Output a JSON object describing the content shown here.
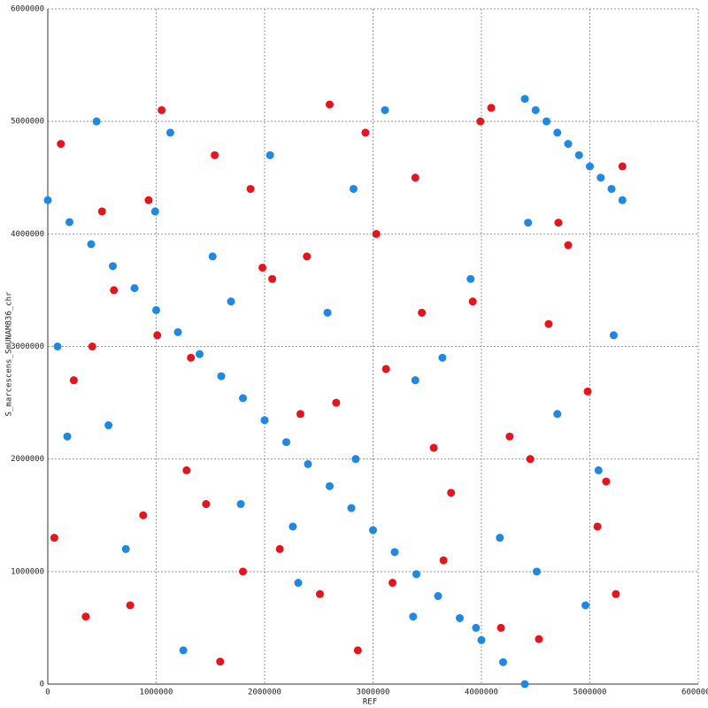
{
  "chart_data": {
    "type": "scatter",
    "xlabel": "REF",
    "ylabel": "S_marcescens_SmUNAM836_chr",
    "xlim": [
      0,
      6000000
    ],
    "ylim": [
      0,
      6000000
    ],
    "xticks": [
      0,
      1000000,
      2000000,
      3000000,
      4000000,
      5000000,
      6000000
    ],
    "yticks": [
      0,
      1000000,
      2000000,
      3000000,
      4000000,
      5000000,
      6000000
    ],
    "grid": true,
    "series": [
      {
        "color": "#e8141c",
        "x": [
          120000,
          350000,
          610000,
          880000,
          1050000,
          1320000,
          1590000,
          1870000,
          2140000,
          2390000,
          2660000,
          2930000,
          3180000,
          3450000,
          3720000,
          3990000,
          4260000,
          4530000,
          4800000,
          5070000,
          5300000,
          240000,
          500000,
          760000,
          1010000,
          1280000,
          1540000,
          1800000,
          2070000,
          2330000,
          2600000,
          2860000,
          3120000,
          3390000,
          3650000,
          3920000,
          4180000,
          4450000,
          4710000,
          4980000,
          5240000,
          60000,
          410000,
          930000,
          1460000,
          1980000,
          2510000,
          3030000,
          3560000,
          4090000,
          4620000,
          5150000
        ],
        "values": [
          4800000,
          600000,
          3500000,
          1500000,
          5100000,
          2900000,
          200000,
          4400000,
          1200000,
          3800000,
          2500000,
          4900000,
          900000,
          3300000,
          1700000,
          5000000,
          2200000,
          400000,
          3900000,
          1400000,
          4600000,
          2700000,
          4200000,
          700000,
          3100000,
          1900000,
          4700000,
          1000000,
          3600000,
          2400000,
          5150000,
          300000,
          2800000,
          4500000,
          1100000,
          3400000,
          500000,
          2000000,
          4100000,
          2600000,
          800000,
          1300000,
          3000000,
          4300000,
          1600000,
          3700000,
          800000,
          4000000,
          2100000,
          5120000,
          3200000,
          1800000
        ]
      },
      {
        "color": "#1e88e5",
        "x": [
          0,
          200000,
          400000,
          600000,
          800000,
          1000000,
          1200000,
          1400000,
          1600000,
          1800000,
          2000000,
          2200000,
          2400000,
          2600000,
          2800000,
          3000000,
          3200000,
          3400000,
          3600000,
          3800000,
          4000000,
          4200000,
          4400000,
          4400000,
          4500000,
          4600000,
          4700000,
          4800000,
          4900000,
          5000000,
          5100000,
          5200000,
          5300000,
          180000,
          450000,
          720000,
          990000,
          1250000,
          1520000,
          1780000,
          2050000,
          2310000,
          2580000,
          2840000,
          3110000,
          3370000,
          3640000,
          3900000,
          4170000,
          4430000,
          4700000,
          4960000,
          5220000,
          90000,
          560000,
          1130000,
          1690000,
          2260000,
          2820000,
          3390000,
          3950000,
          4510000,
          5080000
        ],
        "values": [
          4300000,
          4105000,
          3909000,
          3714000,
          3518000,
          3323000,
          3127000,
          2932000,
          2736000,
          2541000,
          2345000,
          2150000,
          1955000,
          1759000,
          1564000,
          1368000,
          1173000,
          977000,
          782000,
          586000,
          391000,
          195000,
          0,
          5200000,
          5100000,
          5000000,
          4900000,
          4800000,
          4700000,
          4600000,
          4500000,
          4400000,
          4300000,
          2200000,
          5000000,
          1200000,
          4200000,
          300000,
          3800000,
          1600000,
          4700000,
          900000,
          3300000,
          2000000,
          5100000,
          600000,
          2900000,
          3600000,
          1300000,
          4100000,
          2400000,
          700000,
          3100000,
          3000000,
          2300000,
          4900000,
          3400000,
          1400000,
          4400000,
          2700000,
          500000,
          1000000,
          1900000
        ]
      }
    ]
  }
}
